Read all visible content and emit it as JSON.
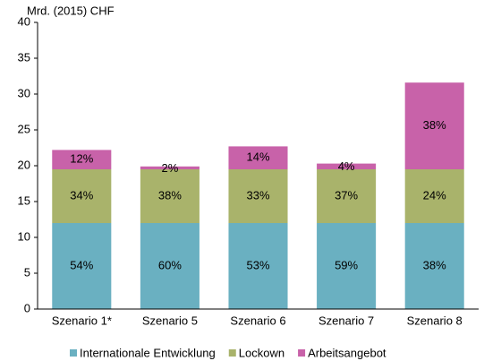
{
  "chart_data": {
    "type": "stacked_bar",
    "y_axis_label": "Mrd. (2015) CHF",
    "categories": [
      "Szenario 1*",
      "Szenario 5",
      "Szenario 6",
      "Szenario 7",
      "Szenario 8"
    ],
    "series": [
      {
        "name": "Internationale Entwicklung",
        "color": "#6ab0c1",
        "values": [
          12,
          12,
          12,
          12,
          12
        ],
        "value_labels": [
          "54%",
          "60%",
          "53%",
          "59%",
          "38%"
        ]
      },
      {
        "name": "Lockown",
        "color": "#a9b36b",
        "values": [
          7.5,
          7.5,
          7.5,
          7.5,
          7.5
        ],
        "value_labels": [
          "34%",
          "38%",
          "33%",
          "37%",
          "24%"
        ]
      },
      {
        "name": "Arbeitsangebot",
        "color": "#c862a9",
        "values": [
          2.7,
          0.4,
          3.2,
          0.8,
          12.1
        ],
        "value_labels": [
          "12%",
          "2%",
          "14%",
          "4%",
          "38%"
        ]
      }
    ],
    "ylim": [
      0,
      40
    ],
    "yticks": [
      0,
      5,
      10,
      15,
      20,
      25,
      30,
      35,
      40
    ],
    "legend": "bottom"
  }
}
